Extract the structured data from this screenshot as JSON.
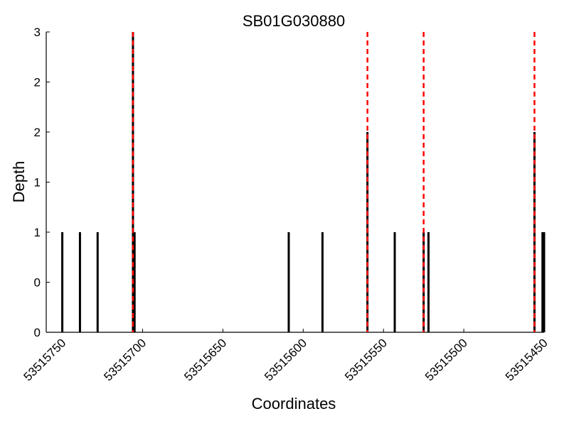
{
  "chart_data": {
    "type": "bar",
    "title": "SB01G030880",
    "xlabel": "Coordinates",
    "ylabel": "Depth",
    "x_reversed": true,
    "xlim": [
      53515760,
      53515450
    ],
    "ylim": [
      0,
      3
    ],
    "y_ticks": [
      0,
      0.5,
      1,
      1.5,
      2,
      2.5,
      3
    ],
    "y_tick_labels": [
      "0",
      "0",
      "1",
      "1",
      "2",
      "2",
      "3"
    ],
    "x_ticks": [
      53515750,
      53515700,
      53515650,
      53515600,
      53515550,
      53515500,
      53515450
    ],
    "x_tick_labels": [
      "53515750",
      "53515700",
      "53515650",
      "53515600",
      "53515550",
      "53515500",
      "53515450"
    ],
    "bar_color": "#000000",
    "marker_color": "#ff0000",
    "bars": [
      {
        "x": 53515750,
        "depth": 1
      },
      {
        "x": 53515739,
        "depth": 1
      },
      {
        "x": 53515728,
        "depth": 1
      },
      {
        "x": 53515706,
        "depth": 3
      },
      {
        "x": 53515705,
        "depth": 1
      },
      {
        "x": 53515609,
        "depth": 1
      },
      {
        "x": 53515588,
        "depth": 1
      },
      {
        "x": 53515560,
        "depth": 2
      },
      {
        "x": 53515543,
        "depth": 1
      },
      {
        "x": 53515525,
        "depth": 1
      },
      {
        "x": 53515522,
        "depth": 1
      },
      {
        "x": 53515456,
        "depth": 2
      },
      {
        "x": 53515451,
        "depth": 1
      },
      {
        "x": 53515450,
        "depth": 1
      }
    ],
    "markers": [
      53515706,
      53515560,
      53515525,
      53515456
    ]
  }
}
